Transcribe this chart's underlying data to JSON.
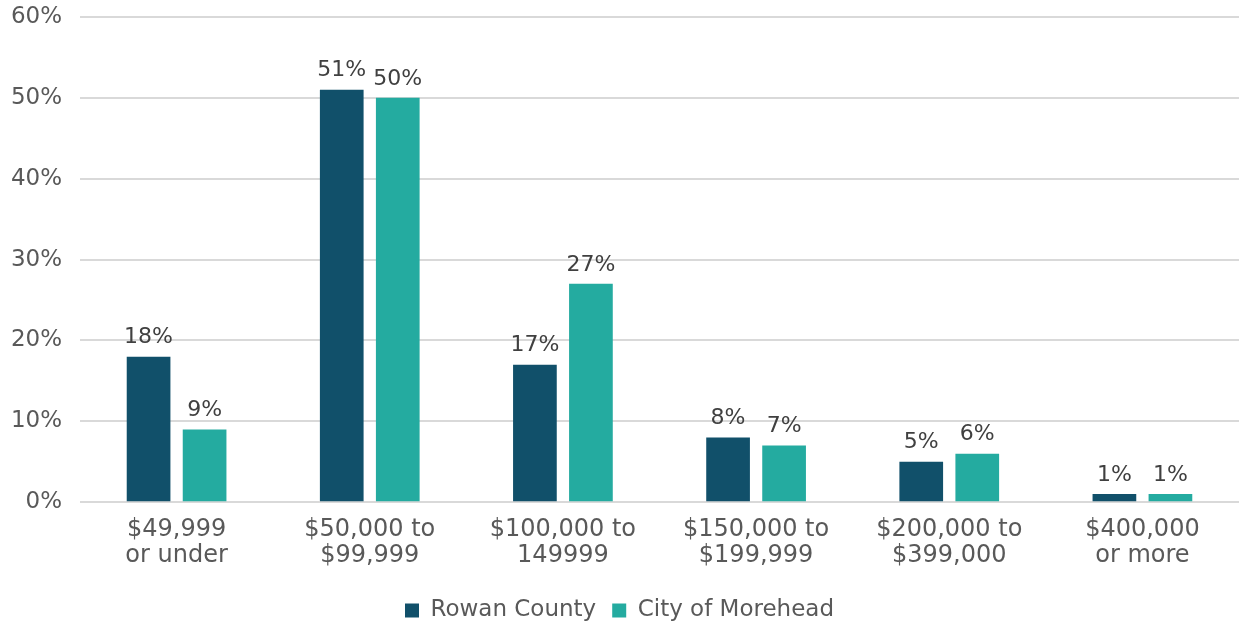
{
  "chart_data": {
    "type": "bar",
    "categories": [
      "$49,999\nor under",
      "$50,000 to\n$99,999",
      "$100,000 to\n149999",
      "$150,000 to\n$199,999",
      "$200,000 to\n$399,000",
      "$400,000\nor more"
    ],
    "series": [
      {
        "name": "Rowan County",
        "color": "#11506a",
        "values": [
          18,
          51,
          17,
          8,
          5,
          1
        ],
        "value_labels": [
          "18%",
          "51%",
          "17%",
          "8%",
          "5%",
          "1%"
        ]
      },
      {
        "name": "City of Morehead",
        "color": "#24aba0",
        "values": [
          9,
          50,
          27,
          7,
          6,
          1
        ],
        "value_labels": [
          "9%",
          "50%",
          "27%",
          "7%",
          "6%",
          "1%"
        ]
      }
    ],
    "ylim": [
      0,
      60
    ],
    "yticks": [
      {
        "value": 0,
        "label": "0%"
      },
      {
        "value": 10,
        "label": "10%"
      },
      {
        "value": 20,
        "label": "20%"
      },
      {
        "value": 30,
        "label": "30%"
      },
      {
        "value": 40,
        "label": "40%"
      },
      {
        "value": 50,
        "label": "50%"
      },
      {
        "value": 60,
        "label": "60%"
      }
    ],
    "grid": "y",
    "legend": "bottom"
  }
}
